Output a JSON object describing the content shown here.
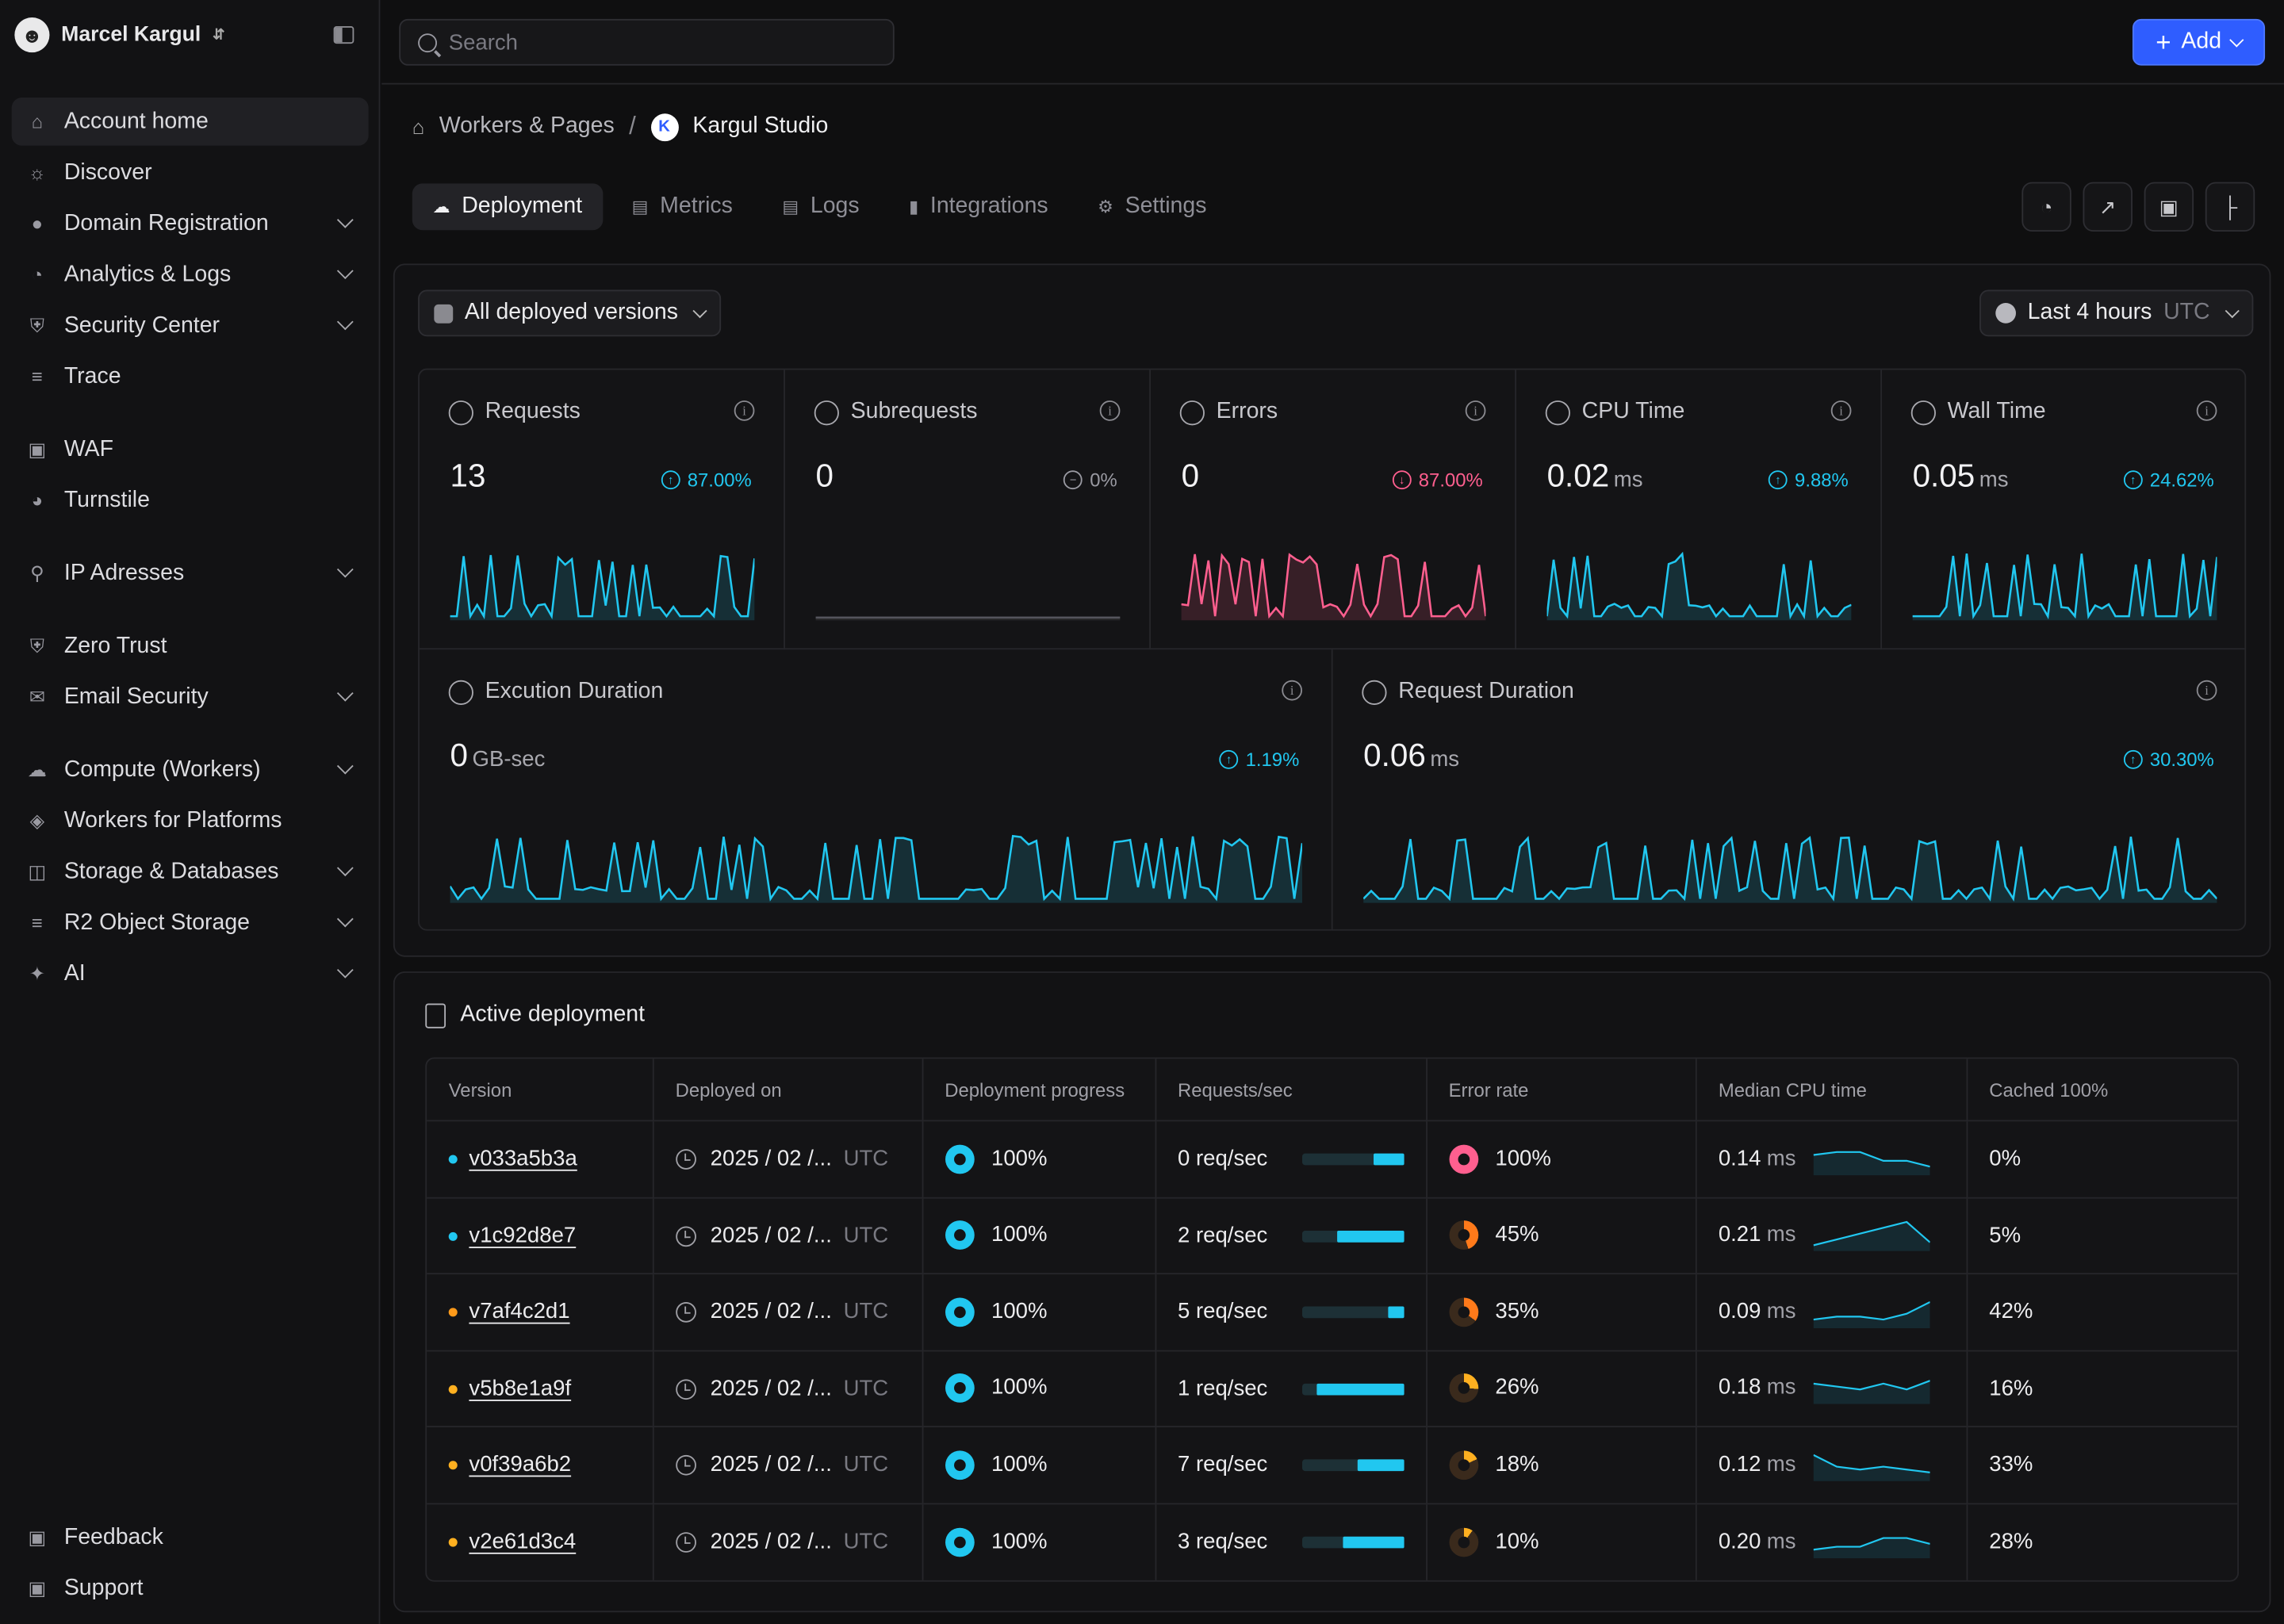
{
  "user": {
    "name": "Marcel Kargul"
  },
  "sidebar": {
    "items": [
      {
        "label": "Account home",
        "icon": "home-icon"
      },
      {
        "label": "Discover",
        "icon": "bulb-icon"
      },
      {
        "label": "Domain Registration",
        "icon": "globe-icon"
      },
      {
        "label": "Analytics & Logs",
        "icon": "pie-icon"
      },
      {
        "label": "Security Center",
        "icon": "shield-icon"
      },
      {
        "label": "Trace",
        "icon": "trace-icon"
      },
      {
        "label": "WAF",
        "icon": "waf-icon"
      },
      {
        "label": "Turnstile",
        "icon": "turnstile-icon"
      },
      {
        "label": "IP Adresses",
        "icon": "pin-icon"
      },
      {
        "label": "Zero Trust",
        "icon": "shield-icon"
      },
      {
        "label": "Email Security",
        "icon": "mail-icon"
      },
      {
        "label": "Compute (Workers)",
        "icon": "workers-icon"
      },
      {
        "label": "Workers for Platforms",
        "icon": "layers-icon"
      },
      {
        "label": "Storage & Databases",
        "icon": "storage-icon"
      },
      {
        "label": "R2 Object Storage",
        "icon": "database-icon"
      },
      {
        "label": "AI",
        "icon": "sparkle-icon"
      }
    ],
    "bottom": [
      {
        "label": "Feedback",
        "icon": "chat-icon"
      },
      {
        "label": "Support",
        "icon": "support-icon"
      }
    ]
  },
  "search": {
    "placeholder": "Search"
  },
  "add_button": {
    "label": "Add"
  },
  "breadcrumb": {
    "parent": "Workers & Pages",
    "current": "Kargul Studio",
    "logo_letter": "K"
  },
  "tabs": [
    {
      "label": "Deployment"
    },
    {
      "label": "Metrics"
    },
    {
      "label": "Logs"
    },
    {
      "label": "Integrations"
    },
    {
      "label": "Settings"
    }
  ],
  "filters": {
    "versions": "All deployed versions",
    "range": "Last 4 hours",
    "tz": "UTC"
  },
  "metrics": [
    {
      "title": "Requests",
      "value": "13",
      "unit": "",
      "delta": "87.00%",
      "trend": "up",
      "color": "#21c7f0"
    },
    {
      "title": "Subrequests",
      "value": "0",
      "unit": "",
      "delta": "0%",
      "trend": "flat",
      "color": "#9a9aa2"
    },
    {
      "title": "Errors",
      "value": "0",
      "unit": "",
      "delta": "87.00%",
      "trend": "down",
      "color": "#ff5f8f"
    },
    {
      "title": "CPU Time",
      "value": "0.02",
      "unit": "ms",
      "delta": "9.88%",
      "trend": "up",
      "color": "#21c7f0"
    },
    {
      "title": "Wall Time",
      "value": "0.05",
      "unit": "ms",
      "delta": "24.62%",
      "trend": "up",
      "color": "#21c7f0"
    },
    {
      "title": "Excution Duration",
      "value": "0",
      "unit": "GB-sec",
      "delta": "1.19%",
      "trend": "up",
      "color": "#21c7f0"
    },
    {
      "title": "Request Duration",
      "value": "0.06",
      "unit": "ms",
      "delta": "30.30%",
      "trend": "up",
      "color": "#21c7f0"
    }
  ],
  "deployment": {
    "title": "Active deployment",
    "columns": [
      "Version",
      "Deployed on",
      "Deployment progress",
      "Requests/sec",
      "Error rate",
      "Median CPU time",
      "Cached 100%"
    ],
    "rows": [
      {
        "version": "v033a5b3a",
        "dot": "#21c7f0",
        "date": "2025 / 02 /...",
        "tz": "UTC",
        "progress": "100%",
        "rps": "0 req/sec",
        "rps_fill": 0.3,
        "err": "100%",
        "err_frac": 1.0,
        "err_color": "#ff5f8f",
        "cpu": "0.14",
        "cpu_unit": "ms",
        "spark": [
          6,
          7,
          7,
          4,
          4,
          2
        ],
        "cached": "0%"
      },
      {
        "version": "v1c92d8e7",
        "dot": "#21c7f0",
        "date": "2025 / 02 /...",
        "tz": "UTC",
        "progress": "100%",
        "rps": "2 req/sec",
        "rps_fill": 0.65,
        "err": "45%",
        "err_frac": 0.45,
        "err_color": "#ff7a1a",
        "cpu": "0.21",
        "cpu_unit": "ms",
        "spark": [
          1,
          3,
          5,
          7,
          9,
          2
        ],
        "cached": "5%"
      },
      {
        "version": "v7af4c2d1",
        "dot": "#ff9a1a",
        "date": "2025 / 02 /...",
        "tz": "UTC",
        "progress": "100%",
        "rps": "5 req/sec",
        "rps_fill": 0.15,
        "err": "35%",
        "err_frac": 0.35,
        "err_color": "#ff7a1a",
        "cpu": "0.09",
        "cpu_unit": "ms",
        "spark": [
          2,
          3,
          3,
          2,
          4,
          8
        ],
        "cached": "42%"
      },
      {
        "version": "v5b8e1a9f",
        "dot": "#ffb020",
        "date": "2025 / 02 /...",
        "tz": "UTC",
        "progress": "100%",
        "rps": "1 req/sec",
        "rps_fill": 0.85,
        "err": "26%",
        "err_frac": 0.26,
        "err_color": "#ffb020",
        "cpu": "0.18",
        "cpu_unit": "ms",
        "spark": [
          6,
          5,
          4,
          6,
          4,
          7
        ],
        "cached": "16%"
      },
      {
        "version": "v0f39a6b2",
        "dot": "#ffb020",
        "date": "2025 / 02 /...",
        "tz": "UTC",
        "progress": "100%",
        "rps": "7 req/sec",
        "rps_fill": 0.45,
        "err": "18%",
        "err_frac": 0.18,
        "err_color": "#ffb020",
        "cpu": "0.12",
        "cpu_unit": "ms",
        "spark": [
          8,
          4,
          3,
          4,
          3,
          2
        ],
        "cached": "33%"
      },
      {
        "version": "v2e61d3c4",
        "dot": "#ffb020",
        "date": "2025 / 02 /...",
        "tz": "UTC",
        "progress": "100%",
        "rps": "3 req/sec",
        "rps_fill": 0.6,
        "err": "10%",
        "err_frac": 0.1,
        "err_color": "#ffb020",
        "cpu": "0.20",
        "cpu_unit": "ms",
        "spark": [
          2,
          3,
          3,
          6,
          6,
          4
        ],
        "cached": "28%"
      }
    ]
  }
}
